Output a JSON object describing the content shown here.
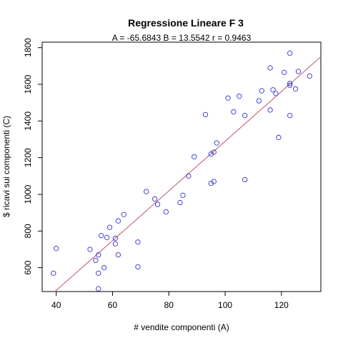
{
  "chart_data": {
    "type": "scatter",
    "title": "Regressione Lineare F 3",
    "subtitle": "A = -65.6843   B = 13.5542   r = 0.9463",
    "xlabel": "# vendite componenti (A)",
    "ylabel": "$ ricavi sui componenti (C)",
    "xlim": [
      35,
      134
    ],
    "ylim": [
      470,
      1830
    ],
    "xticks": [
      40,
      60,
      80,
      100,
      120
    ],
    "yticks": [
      600,
      800,
      1000,
      1200,
      1400,
      1600,
      1800
    ],
    "grid": false,
    "regression": {
      "intercept": -65.6843,
      "slope": 13.5542
    },
    "colors": {
      "points": "#3333cc",
      "line": "#c05a6b"
    },
    "points": [
      [
        39,
        570
      ],
      [
        40,
        705
      ],
      [
        52,
        700
      ],
      [
        54,
        640
      ],
      [
        55,
        670
      ],
      [
        55,
        570
      ],
      [
        55,
        485
      ],
      [
        56,
        775
      ],
      [
        57,
        600
      ],
      [
        58,
        765
      ],
      [
        59,
        820
      ],
      [
        61,
        760
      ],
      [
        61,
        730
      ],
      [
        62,
        855
      ],
      [
        62,
        670
      ],
      [
        64,
        890
      ],
      [
        69,
        740
      ],
      [
        69,
        605
      ],
      [
        72,
        1015
      ],
      [
        75,
        975
      ],
      [
        76,
        945
      ],
      [
        79,
        905
      ],
      [
        84,
        955
      ],
      [
        85,
        995
      ],
      [
        87,
        1100
      ],
      [
        89,
        1205
      ],
      [
        93,
        1435
      ],
      [
        95,
        1060
      ],
      [
        95,
        1220
      ],
      [
        96,
        1230
      ],
      [
        96,
        1070
      ],
      [
        97,
        1280
      ],
      [
        101,
        1525
      ],
      [
        103,
        1450
      ],
      [
        105,
        1535
      ],
      [
        107,
        1430
      ],
      [
        107,
        1080
      ],
      [
        112,
        1510
      ],
      [
        113,
        1565
      ],
      [
        116,
        1690
      ],
      [
        116,
        1460
      ],
      [
        117,
        1570
      ],
      [
        118,
        1550
      ],
      [
        119,
        1310
      ],
      [
        121,
        1665
      ],
      [
        123,
        1770
      ],
      [
        123,
        1595
      ],
      [
        123,
        1605
      ],
      [
        123,
        1430
      ],
      [
        125,
        1575
      ],
      [
        126,
        1670
      ],
      [
        130,
        1645
      ]
    ]
  }
}
